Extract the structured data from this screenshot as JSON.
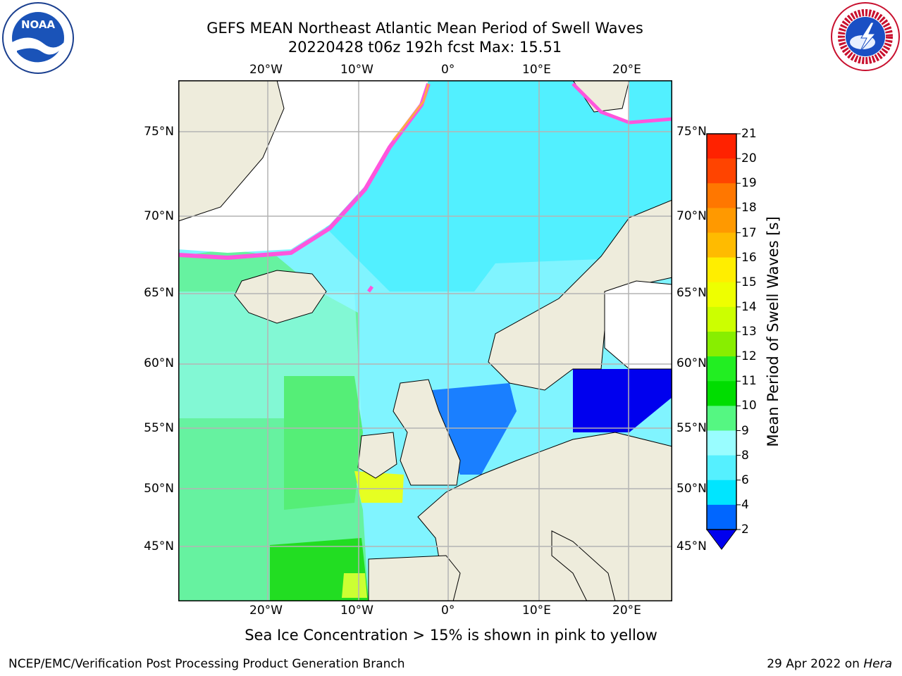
{
  "title_line1": "GEFS MEAN Northeast Atlantic Mean Period of Swell Waves",
  "title_line2": "20220428 t06z 192h fcst   Max: 15.51",
  "logos": {
    "left": {
      "icon": "noaa-logo",
      "text": "NOAA"
    },
    "right": {
      "icon": "nws-logo",
      "ring_text": "NATIONAL WEATHER SERVICE"
    }
  },
  "map": {
    "lon_labels": [
      "20°W",
      "10°W",
      "0°",
      "10°E",
      "20°E"
    ],
    "lat_labels": [
      "75°N",
      "70°N",
      "65°N",
      "60°N",
      "55°N",
      "50°N",
      "45°N"
    ],
    "colors": {
      "land": "#eeecdc",
      "ice_free_white": "#ffffff",
      "grid": "#b4b4b4",
      "coast": "#000000"
    }
  },
  "colorbar": {
    "label": "Mean Period of Swell Waves [s]",
    "ticks": [
      "2",
      "4",
      "6",
      "8",
      "9",
      "10",
      "11",
      "12",
      "13",
      "14",
      "15",
      "16",
      "17",
      "18",
      "19",
      "20",
      "21"
    ],
    "colors": [
      "#0066ff",
      "#00e5ff",
      "#55f0ff",
      "#99fdff",
      "#55f782",
      "#00dd00",
      "#22ee22",
      "#88ee00",
      "#ccff00",
      "#eeff00",
      "#ffee00",
      "#ffbb00",
      "#ff9900",
      "#ff7700",
      "#ff4400",
      "#ff2200"
    ],
    "under_color": "#0000ee"
  },
  "footnote": "Sea Ice Concentration > 15% is shown in pink to yellow",
  "credit": "NCEP/EMC/Verification Post Processing Product Generation Branch",
  "stamp_text": "29 Apr 2022 on ",
  "stamp_machine": "Hera"
}
